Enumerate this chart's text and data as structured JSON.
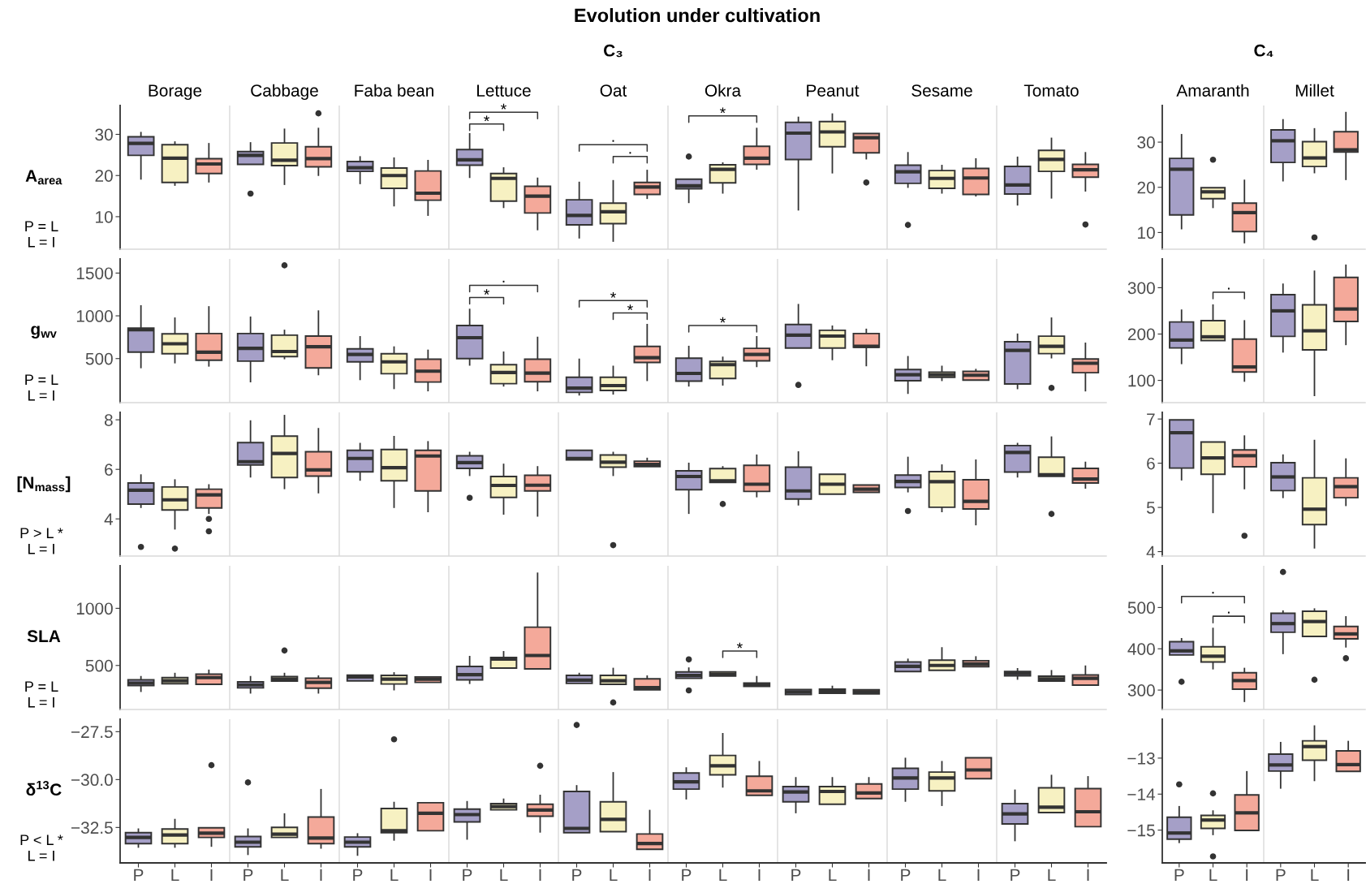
{
  "chart_data": [
    {
      "type": "box",
      "title": "Evolution under cultivation",
      "subtitle": "C₃",
      "ylabel": "A$_{area}$",
      "categories": [
        "Borage",
        "Cabbage",
        "Faba bean",
        "Lettuce",
        "Oat",
        "Okra",
        "Peanut",
        "Sesame",
        "Tomato"
      ],
      "ylim": [
        2.1,
        37
      ],
      "yticks": [
        10,
        20,
        30
      ],
      "annotations": [
        "P = L\nL = I",
        "*",
        "*",
        ".",
        ".",
        "*"
      ],
      "series": [
        {
          "color": "#a59fc7",
          "boxes": [
            {
              "low": 19.0,
              "q1": 24.9,
              "median": 27.8,
              "q3": 29.4,
              "high": 30.6
            },
            {
              "low": 22.7,
              "q1": 22.7,
              "median": 24.9,
              "q3": 25.8,
              "high": 28.1,
              "outliers": [
                15.6
              ]
            },
            {
              "low": 17.9,
              "q1": 21.0,
              "median": 21.9,
              "q3": 23.4,
              "high": 24.7
            },
            {
              "low": 19.4,
              "q1": 22.5,
              "median": 23.8,
              "q3": 26.3,
              "high": 30.3
            },
            {
              "low": 4.7,
              "q1": 8.0,
              "median": 10.3,
              "q3": 14.1,
              "high": 18.5
            },
            {
              "low": 13.3,
              "q1": 16.8,
              "median": 17.5,
              "q3": 19.1,
              "high": 19.1,
              "outliers": [
                24.6
              ]
            },
            {
              "low": 11.5,
              "q1": 23.9,
              "median": 30.3,
              "q3": 32.9,
              "high": 34.3
            },
            {
              "low": 17.0,
              "q1": 18.1,
              "median": 20.9,
              "q3": 22.5,
              "high": 25.7,
              "outliers": [
                8.0
              ]
            },
            {
              "low": 12.7,
              "q1": 15.5,
              "median": 17.7,
              "q3": 22.2,
              "high": 24.6
            }
          ]
        },
        {
          "color": "#f7f1c2",
          "boxes": [
            {
              "low": 17.5,
              "q1": 18.3,
              "median": 24.2,
              "q3": 27.5,
              "high": 28.3
            },
            {
              "low": 17.7,
              "q1": 22.4,
              "median": 23.7,
              "q3": 27.9,
              "high": 31.4
            },
            {
              "low": 12.5,
              "q1": 16.9,
              "median": 20.0,
              "q3": 21.8,
              "high": 24.4
            },
            {
              "low": 12.1,
              "q1": 13.8,
              "median": 19.3,
              "q3": 20.5,
              "high": 22.0
            },
            {
              "low": 3.9,
              "q1": 8.3,
              "median": 11.2,
              "q3": 13.3,
              "high": 18.9
            },
            {
              "low": 15.6,
              "q1": 18.2,
              "median": 21.5,
              "q3": 22.6,
              "high": 23.2
            },
            {
              "low": 20.5,
              "q1": 27.0,
              "median": 30.6,
              "q3": 33.1,
              "high": 35.1
            },
            {
              "low": 15.6,
              "q1": 16.9,
              "median": 19.3,
              "q3": 21.2,
              "high": 22.6
            },
            {
              "low": 14.4,
              "q1": 21.0,
              "median": 23.9,
              "q3": 26.1,
              "high": 29.2
            }
          ]
        },
        {
          "color": "#f4a99a",
          "boxes": [
            {
              "low": 18.3,
              "q1": 20.5,
              "median": 22.8,
              "q3": 24.1,
              "high": 27.9
            },
            {
              "low": 19.9,
              "q1": 22.1,
              "median": 24.1,
              "q3": 27.0,
              "high": 31.6,
              "outliers": [
                35.1
              ]
            },
            {
              "low": 10.2,
              "q1": 14.0,
              "median": 15.7,
              "q3": 21.1,
              "high": 23.8
            },
            {
              "low": 6.7,
              "q1": 10.9,
              "median": 15.0,
              "q3": 17.4,
              "high": 19.5
            },
            {
              "low": 14.3,
              "q1": 15.4,
              "median": 17.2,
              "q3": 18.3,
              "high": 21.4
            },
            {
              "low": 21.4,
              "q1": 22.7,
              "median": 24.2,
              "q3": 27.1,
              "high": 31.6
            },
            {
              "low": 23.9,
              "q1": 25.5,
              "median": 29.2,
              "q3": 30.2,
              "high": 30.2,
              "outliers": [
                18.3
              ]
            },
            {
              "low": 14.9,
              "q1": 15.4,
              "median": 19.4,
              "q3": 21.7,
              "high": 24.2
            },
            {
              "low": 16.1,
              "q1": 19.6,
              "median": 21.4,
              "q3": 22.7,
              "high": 25.7,
              "outliers": [
                8.1
              ]
            }
          ]
        }
      ]
    },
    {
      "type": "box",
      "subtitle": "C₄",
      "categories": [
        "Amaranth",
        "Millet"
      ],
      "ylim": [
        6.3,
        38.1
      ],
      "yticks": [
        10,
        20,
        30
      ],
      "series": [
        {
          "color": "#a59fc7",
          "boxes": [
            {
              "low": 10.7,
              "q1": 13.9,
              "median": 24.0,
              "q3": 26.4,
              "high": 31.8
            },
            {
              "low": 21.3,
              "q1": 25.5,
              "median": 30.3,
              "q3": 32.7,
              "high": 35.1
            }
          ]
        },
        {
          "color": "#f7f1c2",
          "boxes": [
            {
              "low": 15.4,
              "q1": 17.5,
              "median": 19.0,
              "q3": 19.9,
              "high": 19.9,
              "outliers": [
                26.1
              ]
            },
            {
              "low": 23.1,
              "q1": 24.6,
              "median": 26.5,
              "q3": 30.1,
              "high": 33.1,
              "outliers": [
                8.9
              ]
            }
          ]
        },
        {
          "color": "#f4a99a",
          "boxes": [
            {
              "low": 7.6,
              "q1": 10.2,
              "median": 14.4,
              "q3": 16.5,
              "high": 21.7
            },
            {
              "low": 21.6,
              "q1": 27.8,
              "median": 28.3,
              "q3": 32.3,
              "high": 36.7
            }
          ]
        }
      ]
    },
    {
      "type": "box",
      "ylabel": "g$_{wv}$",
      "categories": [
        null,
        null,
        null,
        null,
        null,
        null,
        null,
        null,
        null
      ],
      "ylim": [
        -15,
        1665
      ],
      "yticks": [
        500,
        1000,
        1500
      ],
      "tick_labels": "y",
      "annotations": [
        "P = L\nL = I",
        ".",
        "*",
        "*",
        "*",
        "*"
      ],
      "series": [
        {
          "color": "#a59fc7",
          "boxes": [
            {
              "low": 387,
              "q1": 575,
              "median": 838,
              "q3": 857,
              "high": 1124
            },
            {
              "low": 222,
              "q1": 470,
              "median": 620,
              "q3": 793,
              "high": 992
            },
            {
              "low": 248,
              "q1": 462,
              "median": 549,
              "q3": 613,
              "high": 763
            },
            {
              "low": 417,
              "q1": 500,
              "median": 744,
              "q3": 887,
              "high": 1083
            },
            {
              "low": 68,
              "q1": 105,
              "median": 154,
              "q3": 282,
              "high": 500
            },
            {
              "low": 173,
              "q1": 237,
              "median": 327,
              "q3": 504,
              "high": 650
            },
            {
              "low": 624,
              "q1": 624,
              "median": 774,
              "q3": 899,
              "high": 1139,
              "outliers": [
                192
              ]
            },
            {
              "low": 87,
              "q1": 241,
              "median": 312,
              "q3": 372,
              "high": 530
            },
            {
              "low": 142,
              "q1": 204,
              "median": 596,
              "q3": 696,
              "high": 793
            }
          ]
        },
        {
          "color": "#f7f1c2",
          "boxes": [
            {
              "low": 444,
              "q1": 556,
              "median": 673,
              "q3": 790,
              "high": 981
            },
            {
              "low": 492,
              "q1": 523,
              "median": 583,
              "q3": 774,
              "high": 838,
              "outliers": [
                1590
              ]
            },
            {
              "low": 143,
              "q1": 323,
              "median": 462,
              "q3": 556,
              "high": 643
            },
            {
              "low": 173,
              "q1": 207,
              "median": 338,
              "q3": 429,
              "high": 583
            },
            {
              "low": 79,
              "q1": 128,
              "median": 184,
              "q3": 282,
              "high": 417
            },
            {
              "low": 184,
              "q1": 267,
              "median": 429,
              "q3": 466,
              "high": 523
            },
            {
              "low": 481,
              "q1": 624,
              "median": 763,
              "q3": 831,
              "high": 887
            },
            {
              "low": 237,
              "q1": 282,
              "median": 312,
              "q3": 342,
              "high": 417
            },
            {
              "low": 502,
              "q1": 558,
              "median": 643,
              "q3": 762,
              "high": 981,
              "outliers": [
                157
              ]
            }
          ]
        },
        {
          "color": "#f4a99a",
          "boxes": [
            {
              "low": 406,
              "q1": 481,
              "median": 575,
              "q3": 793,
              "high": 1113
            },
            {
              "low": 305,
              "q1": 391,
              "median": 639,
              "q3": 763,
              "high": 1064
            },
            {
              "low": 117,
              "q1": 226,
              "median": 353,
              "q3": 493,
              "high": 605
            },
            {
              "low": 117,
              "q1": 229,
              "median": 331,
              "q3": 493,
              "high": 756
            },
            {
              "low": 237,
              "q1": 455,
              "median": 511,
              "q3": 643,
              "high": 906
            },
            {
              "low": 400,
              "q1": 474,
              "median": 549,
              "q3": 620,
              "high": 763
            },
            {
              "low": 410,
              "q1": 632,
              "median": 643,
              "q3": 793,
              "high": 850
            },
            {
              "low": 248,
              "q1": 248,
              "median": 305,
              "q3": 350,
              "high": 380
            },
            {
              "low": 116,
              "q1": 335,
              "median": 445,
              "q3": 496,
              "high": 687
            }
          ]
        }
      ]
    },
    {
      "type": "box",
      "categories": [
        null,
        null
      ],
      "ylim": [
        52,
        362
      ],
      "yticks": [
        100,
        200,
        300
      ],
      "tick_labels": "y",
      "annotations": [
        "."
      ],
      "series": [
        {
          "color": "#a59fc7",
          "boxes": [
            {
              "low": 135,
              "q1": 170,
              "median": 187,
              "q3": 226,
              "high": 253
            },
            {
              "low": 160,
              "q1": 195,
              "median": 250,
              "q3": 285,
              "high": 309
            }
          ]
        },
        {
          "color": "#f7f1c2",
          "boxes": [
            {
              "low": 186,
              "q1": 186,
              "median": 194,
              "q3": 229,
              "high": 264
            },
            {
              "low": 66,
              "q1": 166,
              "median": 207,
              "q3": 263,
              "high": 337
            }
          ]
        },
        {
          "color": "#f4a99a",
          "boxes": [
            {
              "low": 97,
              "q1": 118,
              "median": 129,
              "q3": 189,
              "high": 230
            },
            {
              "low": 176,
              "q1": 227,
              "median": 254,
              "q3": 322,
              "high": 350
            }
          ]
        }
      ]
    },
    {
      "type": "box",
      "ylabel": "[N$_{mass}$]",
      "categories": [
        null,
        null,
        null,
        null,
        null,
        null,
        null,
        null,
        null
      ],
      "ylim": [
        2.5,
        8.3
      ],
      "yticks": [
        4,
        6,
        8
      ],
      "tick_labels": "y",
      "annotations": [
        "P > L *\nL = I"
      ],
      "series": [
        {
          "color": "#a59fc7",
          "boxes": [
            {
              "low": 4.44,
              "q1": 4.6,
              "median": 5.16,
              "q3": 5.45,
              "high": 5.8,
              "outliers": [
                2.87
              ]
            },
            {
              "low": 5.67,
              "q1": 6.18,
              "median": 6.31,
              "q3": 7.08,
              "high": 7.98
            },
            {
              "low": 5.54,
              "q1": 5.9,
              "median": 6.44,
              "q3": 6.77,
              "high": 7.07
            },
            {
              "low": 5.73,
              "q1": 6.04,
              "median": 6.27,
              "q3": 6.55,
              "high": 6.71,
              "outliers": [
                4.85
              ]
            },
            {
              "low": 6.38,
              "q1": 6.38,
              "median": 6.44,
              "q3": 6.77,
              "high": 6.77
            },
            {
              "low": 4.2,
              "q1": 5.18,
              "median": 5.71,
              "q3": 5.94,
              "high": 6.27
            },
            {
              "low": 4.54,
              "q1": 4.8,
              "median": 5.13,
              "q3": 6.09,
              "high": 6.73
            },
            {
              "low": 5.07,
              "q1": 5.27,
              "median": 5.51,
              "q3": 5.77,
              "high": 6.51,
              "outliers": [
                4.32
              ]
            },
            {
              "low": 5.67,
              "q1": 5.89,
              "median": 6.68,
              "q3": 6.96,
              "high": 7.07
            }
          ]
        },
        {
          "color": "#f7f1c2",
          "boxes": [
            {
              "low": 3.57,
              "q1": 4.36,
              "median": 4.77,
              "q3": 5.29,
              "high": 5.6,
              "outliers": [
                2.8
              ]
            },
            {
              "low": 5.2,
              "q1": 5.67,
              "median": 6.64,
              "q3": 7.34,
              "high": 8.2
            },
            {
              "low": 4.44,
              "q1": 5.54,
              "median": 6.07,
              "q3": 6.8,
              "high": 7.35
            },
            {
              "low": 4.17,
              "q1": 4.87,
              "median": 5.35,
              "q3": 5.71,
              "high": 6.23
            },
            {
              "low": 5.73,
              "q1": 6.09,
              "median": 6.29,
              "q3": 6.58,
              "high": 6.71,
              "outliers": [
                2.94
              ]
            },
            {
              "low": 5.47,
              "q1": 5.47,
              "median": 5.54,
              "q3": 6.03,
              "high": 6.13,
              "outliers": [
                4.6
              ]
            },
            {
              "low": 5.0,
              "q1": 5.0,
              "median": 5.4,
              "q3": 5.8,
              "high": 5.8
            },
            {
              "low": 4.27,
              "q1": 4.47,
              "median": 5.5,
              "q3": 5.91,
              "high": 6.2
            },
            {
              "low": 5.72,
              "q1": 5.72,
              "median": 5.78,
              "q3": 6.49,
              "high": 7.33,
              "outliers": [
                4.2
              ]
            }
          ]
        },
        {
          "color": "#f4a99a",
          "boxes": [
            {
              "low": 4.2,
              "q1": 4.44,
              "median": 4.97,
              "q3": 5.2,
              "high": 5.4,
              "outliers": [
                4.0,
                3.5
              ]
            },
            {
              "low": 5.03,
              "q1": 5.73,
              "median": 5.98,
              "q3": 6.71,
              "high": 7.67
            },
            {
              "low": 4.27,
              "q1": 5.13,
              "median": 6.54,
              "q3": 6.77,
              "high": 7.14
            },
            {
              "low": 4.09,
              "q1": 5.13,
              "median": 5.36,
              "q3": 5.76,
              "high": 6.13
            },
            {
              "low": 6.11,
              "q1": 6.11,
              "median": 6.2,
              "q3": 6.33,
              "high": 6.47
            },
            {
              "low": 4.87,
              "q1": 5.11,
              "median": 5.4,
              "q3": 6.16,
              "high": 6.6
            },
            {
              "low": 5.07,
              "q1": 5.07,
              "median": 5.2,
              "q3": 5.37,
              "high": 5.37
            },
            {
              "low": 3.74,
              "q1": 4.4,
              "median": 4.71,
              "q3": 5.58,
              "high": 6.4
            },
            {
              "low": 5.22,
              "q1": 5.45,
              "median": 5.61,
              "q3": 6.04,
              "high": 6.31
            }
          ]
        }
      ]
    },
    {
      "type": "box",
      "categories": [
        null,
        null
      ],
      "ylim": [
        3.9,
        7.15
      ],
      "yticks": [
        4,
        5,
        6,
        7
      ],
      "tick_labels": "y",
      "series": [
        {
          "color": "#a59fc7",
          "boxes": [
            {
              "low": 5.61,
              "q1": 5.89,
              "median": 6.69,
              "q3": 6.98,
              "high": 6.98
            },
            {
              "low": 5.21,
              "q1": 5.38,
              "median": 5.69,
              "q3": 6.01,
              "high": 6.2
            }
          ]
        },
        {
          "color": "#f7f1c2",
          "boxes": [
            {
              "low": 4.87,
              "q1": 5.75,
              "median": 6.12,
              "q3": 6.48,
              "high": 6.48
            },
            {
              "low": 4.07,
              "q1": 4.61,
              "median": 4.96,
              "q3": 5.67,
              "high": 6.53
            }
          ]
        },
        {
          "color": "#f4a99a",
          "boxes": [
            {
              "low": 5.41,
              "q1": 5.92,
              "median": 6.17,
              "q3": 6.3,
              "high": 6.63,
              "outliers": [
                4.36
              ]
            },
            {
              "low": 5.03,
              "q1": 5.22,
              "median": 5.47,
              "q3": 5.67,
              "high": 6.11
            }
          ]
        }
      ]
    },
    {
      "type": "box",
      "ylabel": "SLA",
      "categories": [
        null,
        null,
        null,
        null,
        null,
        null,
        null,
        null,
        null
      ],
      "ylim": [
        115,
        1372
      ],
      "yticks": [
        500,
        1000
      ],
      "tick_labels": "y",
      "annotations": [
        "P = L\nL = I",
        "*"
      ],
      "series": [
        {
          "color": "#a59fc7",
          "boxes": [
            {
              "low": 268,
              "q1": 324,
              "median": 346,
              "q3": 374,
              "high": 408
            },
            {
              "low": 254,
              "q1": 304,
              "median": 330,
              "q3": 357,
              "high": 408
            },
            {
              "low": 366,
              "q1": 366,
              "median": 400,
              "q3": 416,
              "high": 416
            },
            {
              "low": 338,
              "q1": 374,
              "median": 419,
              "q3": 492,
              "high": 584
            },
            {
              "low": 343,
              "q1": 343,
              "median": 371,
              "q3": 413,
              "high": 436
            },
            {
              "low": 388,
              "q1": 388,
              "median": 413,
              "q3": 444,
              "high": 483,
              "outliers": [
                553,
                282
              ]
            },
            {
              "low": 246,
              "q1": 246,
              "median": 268,
              "q3": 290,
              "high": 290
            },
            {
              "low": 447,
              "q1": 447,
              "median": 492,
              "q3": 531,
              "high": 560
            },
            {
              "low": 375,
              "q1": 410,
              "median": 429,
              "q3": 448,
              "high": 477
            }
          ]
        },
        {
          "color": "#f7f1c2",
          "boxes": [
            {
              "low": 341,
              "q1": 341,
              "median": 366,
              "q3": 394,
              "high": 436
            },
            {
              "low": 363,
              "q1": 363,
              "median": 380,
              "q3": 403,
              "high": 436,
              "outliers": [
                631
              ]
            },
            {
              "low": 282,
              "q1": 338,
              "median": 380,
              "q3": 413,
              "high": 441
            },
            {
              "low": 477,
              "q1": 477,
              "median": 556,
              "q3": 570,
              "high": 626
            },
            {
              "low": 335,
              "q1": 335,
              "median": 366,
              "q3": 413,
              "high": 480,
              "outliers": [
                176
              ]
            },
            {
              "low": 408,
              "q1": 408,
              "median": 422,
              "q3": 444,
              "high": 444
            },
            {
              "low": 257,
              "q1": 257,
              "median": 277,
              "q3": 293,
              "high": 323
            },
            {
              "low": 458,
              "q1": 458,
              "median": 500,
              "q3": 547,
              "high": 660
            },
            {
              "low": 364,
              "q1": 364,
              "median": 382,
              "q3": 406,
              "high": 460
            }
          ]
        },
        {
          "color": "#f4a99a",
          "boxes": [
            {
              "low": 335,
              "q1": 335,
              "median": 394,
              "q3": 424,
              "high": 464
            },
            {
              "low": 254,
              "q1": 302,
              "median": 352,
              "q3": 388,
              "high": 413
            },
            {
              "low": 352,
              "q1": 352,
              "median": 380,
              "q3": 400,
              "high": 400
            },
            {
              "low": 470,
              "q1": 470,
              "median": 587,
              "q3": 835,
              "high": 1313
            },
            {
              "low": 287,
              "q1": 287,
              "median": 307,
              "q3": 383,
              "high": 413
            },
            {
              "low": 318,
              "q1": 318,
              "median": 332,
              "q3": 346,
              "high": 408
            },
            {
              "low": 251,
              "q1": 251,
              "median": 268,
              "q3": 287,
              "high": 287
            },
            {
              "low": 489,
              "q1": 489,
              "median": 514,
              "q3": 542,
              "high": 581
            },
            {
              "low": 328,
              "q1": 328,
              "median": 387,
              "q3": 417,
              "high": 500
            }
          ]
        }
      ]
    },
    {
      "type": "box",
      "categories": [
        null,
        null
      ],
      "ylim": [
        253,
        601
      ],
      "yticks": [
        300,
        400,
        500
      ],
      "tick_labels": "y",
      "annotations": [
        ".",
        "."
      ],
      "series": [
        {
          "color": "#a59fc7",
          "boxes": [
            {
              "low": 385,
              "q1": 385,
              "median": 395,
              "q3": 417,
              "high": 426,
              "outliers": [
                320
              ]
            },
            {
              "low": 387,
              "q1": 440,
              "median": 461,
              "q3": 486,
              "high": 493,
              "outliers": [
                586
              ]
            }
          ]
        },
        {
          "color": "#f7f1c2",
          "boxes": [
            {
              "low": 350,
              "q1": 368,
              "median": 382,
              "q3": 405,
              "high": 451
            },
            {
              "low": 430,
              "q1": 430,
              "median": 466,
              "q3": 491,
              "high": 498,
              "outliers": [
                325
              ]
            }
          ]
        },
        {
          "color": "#f4a99a",
          "boxes": [
            {
              "low": 271,
              "q1": 302,
              "median": 323,
              "q3": 342,
              "high": 354
            },
            {
              "low": 403,
              "q1": 424,
              "median": 436,
              "q3": 454,
              "high": 479,
              "outliers": [
                377
              ]
            }
          ]
        }
      ]
    },
    {
      "type": "box",
      "ylabel": "δ$^{13}$C",
      "categories": [
        "P",
        "L",
        "I",
        "P",
        "L",
        "I",
        "P",
        "L",
        "I",
        "P",
        "L",
        "I",
        "P",
        "L",
        "I",
        "P",
        "L",
        "I",
        "P",
        "L",
        "I",
        "P",
        "L",
        "I",
        "P",
        "L",
        "I"
      ],
      "colors": [
        "#a59fc7",
        "#f7f1c2",
        "#f4a99a",
        "#a59fc7",
        "#f7f1c2",
        "#f4a99a",
        "#a59fc7",
        "#f7f1c2",
        "#f4a99a",
        "#a59fc7",
        "#f7f1c2",
        "#f4a99a",
        "#a59fc7",
        "#f7f1c2",
        "#f4a99a",
        "#a59fc7",
        "#f7f1c2",
        "#f4a99a",
        "#a59fc7",
        "#f7f1c2",
        "#f4a99a",
        "#a59fc7",
        "#f7f1c2",
        "#f4a99a",
        "#a59fc7",
        "#f7f1c2",
        "#f4a99a"
      ],
      "ylim": [
        -34.35,
        -26.85
      ],
      "yticks": [
        {
          "value": -27.5,
          "label": "−27.5"
        },
        {
          "value": -30,
          "label": "−30.0"
        },
        {
          "value": -32.5,
          "label": "−32.5"
        }
      ],
      "annotations": [
        "P < L *\nL = I"
      ],
      "boxes": [
        {
          "low": -33.56,
          "q1": -33.34,
          "median": -33.02,
          "q3": -32.77,
          "high": -32.55
        },
        {
          "low": -33.56,
          "q1": -33.34,
          "median": -32.89,
          "q3": -32.58,
          "high": -32.05
        },
        {
          "low": -33.51,
          "q1": -33.02,
          "median": -32.8,
          "q3": -32.52,
          "high": -32.52,
          "outliers": [
            -29.25
          ]
        },
        {
          "low": -33.94,
          "q1": -33.51,
          "median": -33.27,
          "q3": -32.97,
          "high": -32.55,
          "outliers": [
            -30.15
          ]
        },
        {
          "low": -33.02,
          "q1": -33.02,
          "median": -32.85,
          "q3": -32.5,
          "high": -31.76
        },
        {
          "low": -33.61,
          "q1": -33.34,
          "median": -33.05,
          "q3": -31.96,
          "high": -30.49
        },
        {
          "low": -33.98,
          "q1": -33.51,
          "median": -33.27,
          "q3": -33.0,
          "high": -32.8
        },
        {
          "low": -33.19,
          "q1": -32.77,
          "median": -32.67,
          "q3": -31.51,
          "high": -31.16,
          "outliers": [
            -27.9
          ]
        },
        {
          "low": -32.67,
          "q1": -32.67,
          "median": -31.76,
          "q3": -31.21,
          "high": -31.21
        },
        {
          "low": -33.14,
          "q1": -32.21,
          "median": -31.83,
          "q3": -31.54,
          "high": -31.12
        },
        {
          "low": -31.58,
          "q1": -31.58,
          "median": -31.41,
          "q3": -31.26,
          "high": -30.99
        },
        {
          "low": -32.77,
          "q1": -31.91,
          "median": -31.59,
          "q3": -31.29,
          "high": -30.79,
          "outliers": [
            -29.28
          ]
        },
        {
          "low": -32.77,
          "q1": -32.77,
          "median": -32.55,
          "q3": -30.62,
          "high": -30.29,
          "outliers": [
            -27.15
          ]
        },
        {
          "low": -32.72,
          "q1": -32.72,
          "median": -32.08,
          "q3": -31.16,
          "high": -29.61
        },
        {
          "low": -33.64,
          "q1": -33.64,
          "median": -33.34,
          "q3": -32.84,
          "high": -31.58
        },
        {
          "low": -31.04,
          "q1": -30.5,
          "median": -30.12,
          "q3": -29.66,
          "high": -29.36
        },
        {
          "low": -30.42,
          "q1": -29.75,
          "median": -29.28,
          "q3": -28.74,
          "high": -27.57
        },
        {
          "low": -30.82,
          "q1": -30.82,
          "median": -30.59,
          "q3": -29.83,
          "high": -29.03
        },
        {
          "low": -31.76,
          "q1": -31.16,
          "median": -30.65,
          "q3": -30.37,
          "high": -29.87
        },
        {
          "low": -31.29,
          "q1": -31.29,
          "median": -30.62,
          "q3": -30.37,
          "high": -29.87
        },
        {
          "low": -30.99,
          "q1": -30.99,
          "median": -30.7,
          "q3": -30.23,
          "high": -29.87
        },
        {
          "low": -31.16,
          "q1": -30.5,
          "median": -29.92,
          "q3": -29.41,
          "high": -28.86
        },
        {
          "low": -31.38,
          "q1": -30.59,
          "median": -29.92,
          "q3": -29.61,
          "high": -29.03
        },
        {
          "low": -29.95,
          "q1": -29.95,
          "median": -29.5,
          "q3": -28.86,
          "high": -28.86
        },
        {
          "low": -33.22,
          "q1": -32.32,
          "median": -31.79,
          "q3": -31.26,
          "high": -30.52
        },
        {
          "low": -31.72,
          "q1": -31.72,
          "median": -31.44,
          "q3": -30.43,
          "high": -29.75
        },
        {
          "low": -32.46,
          "q1": -32.46,
          "median": -31.68,
          "q3": -30.47,
          "high": -29.82
        }
      ]
    },
    {
      "type": "box",
      "categories": [
        "P",
        "L",
        "I",
        "P",
        "L",
        "I"
      ],
      "colors": [
        "#a59fc7",
        "#f7f1c2",
        "#f4a99a",
        "#a59fc7",
        "#f7f1c2",
        "#f4a99a"
      ],
      "ylim": [
        -15.91,
        -11.92
      ],
      "yticks": [
        {
          "value": -13,
          "label": "−13"
        },
        {
          "value": -14,
          "label": "−14"
        },
        {
          "value": -15,
          "label": "−15"
        }
      ],
      "boxes": [
        {
          "low": -15.36,
          "q1": -15.25,
          "median": -15.08,
          "q3": -14.64,
          "high": -14.33,
          "outliers": [
            -13.73
          ]
        },
        {
          "low": -15.14,
          "q1": -14.95,
          "median": -14.72,
          "q3": -14.59,
          "high": -14.45,
          "outliers": [
            -13.98,
            -15.73
          ]
        },
        {
          "low": -15.01,
          "q1": -15.01,
          "median": -14.52,
          "q3": -14.02,
          "high": -13.36
        },
        {
          "low": -13.85,
          "q1": -13.36,
          "median": -13.19,
          "q3": -12.89,
          "high": -12.55
        },
        {
          "low": -13.64,
          "q1": -13.06,
          "median": -12.68,
          "q3": -12.52,
          "high": -12.09
        },
        {
          "low": -13.37,
          "q1": -13.37,
          "median": -13.18,
          "q3": -12.8,
          "high": -12.52
        }
      ]
    }
  ]
}
